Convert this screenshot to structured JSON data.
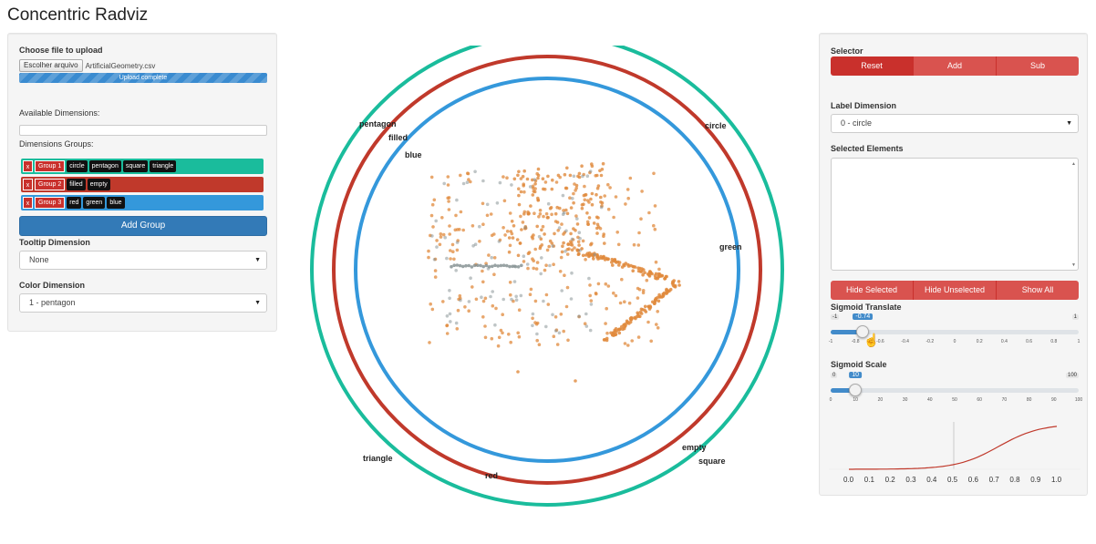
{
  "title": "Concentric Radviz",
  "left": {
    "file_label": "Choose file to upload",
    "file_button": "Escolher arquivo",
    "file_name": "ArtificialGeometry.csv",
    "progress_text": "Upload complete",
    "progress_pct": 100,
    "available_label": "Available Dimensions:",
    "groups_label": "Dimensions Groups:",
    "groups": [
      {
        "x": "x",
        "name": "Group 1",
        "color": "#1abc9c",
        "chips": [
          "circle",
          "pentagon",
          "square",
          "triangle"
        ]
      },
      {
        "x": "x",
        "name": "Group 2",
        "color": "#c0392b",
        "chips": [
          "filled",
          "empty"
        ]
      },
      {
        "x": "x",
        "name": "Group 3",
        "color": "#3498db",
        "chips": [
          "red",
          "green",
          "blue"
        ]
      }
    ],
    "add_group": "Add Group",
    "tooltip_label": "Tooltip Dimension",
    "tooltip_value": "None",
    "color_label": "Color Dimension",
    "color_value": "1 - pentagon"
  },
  "right": {
    "selector_label": "Selector",
    "selector_buttons": [
      "Reset",
      "Add",
      "Sub"
    ],
    "label_dim_label": "Label Dimension",
    "label_dim_value": "0 - circle",
    "selected_label": "Selected Elements",
    "hide_buttons": [
      "Hide Selected",
      "Hide Unselected",
      "Show All"
    ],
    "translate": {
      "label": "Sigmoid Translate",
      "min": "-1",
      "max": "1",
      "value": "-0.74",
      "fraction": 0.13,
      "ticks": [
        "-1",
        "-0.8",
        "-0.6",
        "-0.4",
        "-0.2",
        "0",
        "0.2",
        "0.4",
        "0.6",
        "0.8",
        "1"
      ]
    },
    "scale": {
      "label": "Sigmoid Scale",
      "min": "0",
      "max": "100",
      "value": "10",
      "fraction": 0.1,
      "ticks": [
        "0",
        "10",
        "20",
        "30",
        "40",
        "50",
        "60",
        "70",
        "80",
        "90",
        "100"
      ]
    },
    "sigmoid_axis": [
      "0.0",
      "0.1",
      "0.2",
      "0.3",
      "0.4",
      "0.5",
      "0.6",
      "0.7",
      "0.8",
      "0.9",
      "1.0"
    ]
  },
  "rings": {
    "outer": {
      "color": "#1abc9c",
      "labels": [
        "circle",
        "pentagon",
        "square",
        "triangle"
      ]
    },
    "middle": {
      "color": "#c0392b",
      "labels": [
        "filled",
        "empty"
      ]
    },
    "inner": {
      "color": "#3498db",
      "labels": [
        "red",
        "green",
        "blue"
      ]
    }
  },
  "points": {
    "orange": "#e08a3c",
    "grey": "#7f8c8d"
  }
}
